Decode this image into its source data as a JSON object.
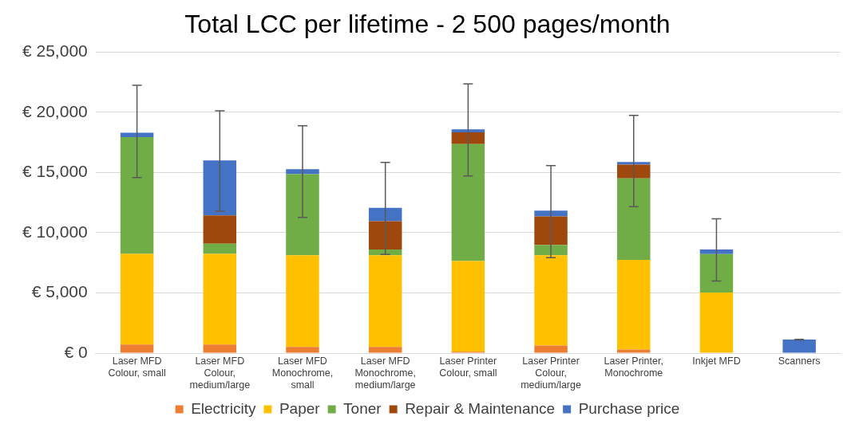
{
  "chart_data": {
    "type": "bar",
    "title": "Total LCC per lifetime - 2 500 pages/month",
    "stacked": true,
    "categories": [
      "Laser MFD Colour, small",
      "Laser MFD Colour, medium/large",
      "Laser MFD Monochrome, small",
      "Laser MFD Monochrome, medium/large",
      "Laser Printer Colour, small",
      "Laser Printer Colour, medium/large",
      "Laser Printer, Monochrome",
      "Inkjet MFD",
      "Scanners"
    ],
    "series": [
      {
        "name": "Electricity",
        "color": "#ed7d31",
        "values": [
          720,
          720,
          505,
          505,
          120,
          625,
          290,
          0,
          0
        ]
      },
      {
        "name": "Paper",
        "color": "#ffc000",
        "values": [
          7520,
          7520,
          7620,
          7620,
          7525,
          7500,
          7460,
          5025,
          0
        ]
      },
      {
        "name": "Toner",
        "color": "#70ad47",
        "values": [
          9710,
          845,
          6735,
          480,
          9710,
          865,
          6760,
          3205,
          0
        ]
      },
      {
        "name": "Repair & Maintenance",
        "color": "#9e480e",
        "values": [
          0,
          2350,
          0,
          2355,
          985,
          2360,
          1150,
          0,
          0
        ]
      },
      {
        "name": "Purchase price",
        "color": "#4472c4",
        "values": [
          360,
          4570,
          410,
          1110,
          240,
          480,
          215,
          380,
          1125
        ],
        "errors": [
          [
            14590,
            22240
          ],
          [
            11780,
            20120
          ],
          [
            11270,
            18890
          ],
          [
            8200,
            15840
          ],
          [
            14715,
            22360
          ],
          [
            7935,
            15580
          ],
          [
            12160,
            19750
          ],
          [
            6000,
            11150
          ],
          [
            1100,
            1150
          ]
        ]
      }
    ],
    "ylim": [
      0,
      25000
    ],
    "yticks": [
      {
        "value": 0,
        "label": "€ 0"
      },
      {
        "value": 5000,
        "label": "€ 5,000"
      },
      {
        "value": 10000,
        "label": "€ 10,000"
      },
      {
        "value": 15000,
        "label": "€ 15,000"
      },
      {
        "value": 20000,
        "label": "€ 20,000"
      },
      {
        "value": 25000,
        "label": "€ 25,000"
      }
    ],
    "grid": "y",
    "legend": "bottom"
  }
}
